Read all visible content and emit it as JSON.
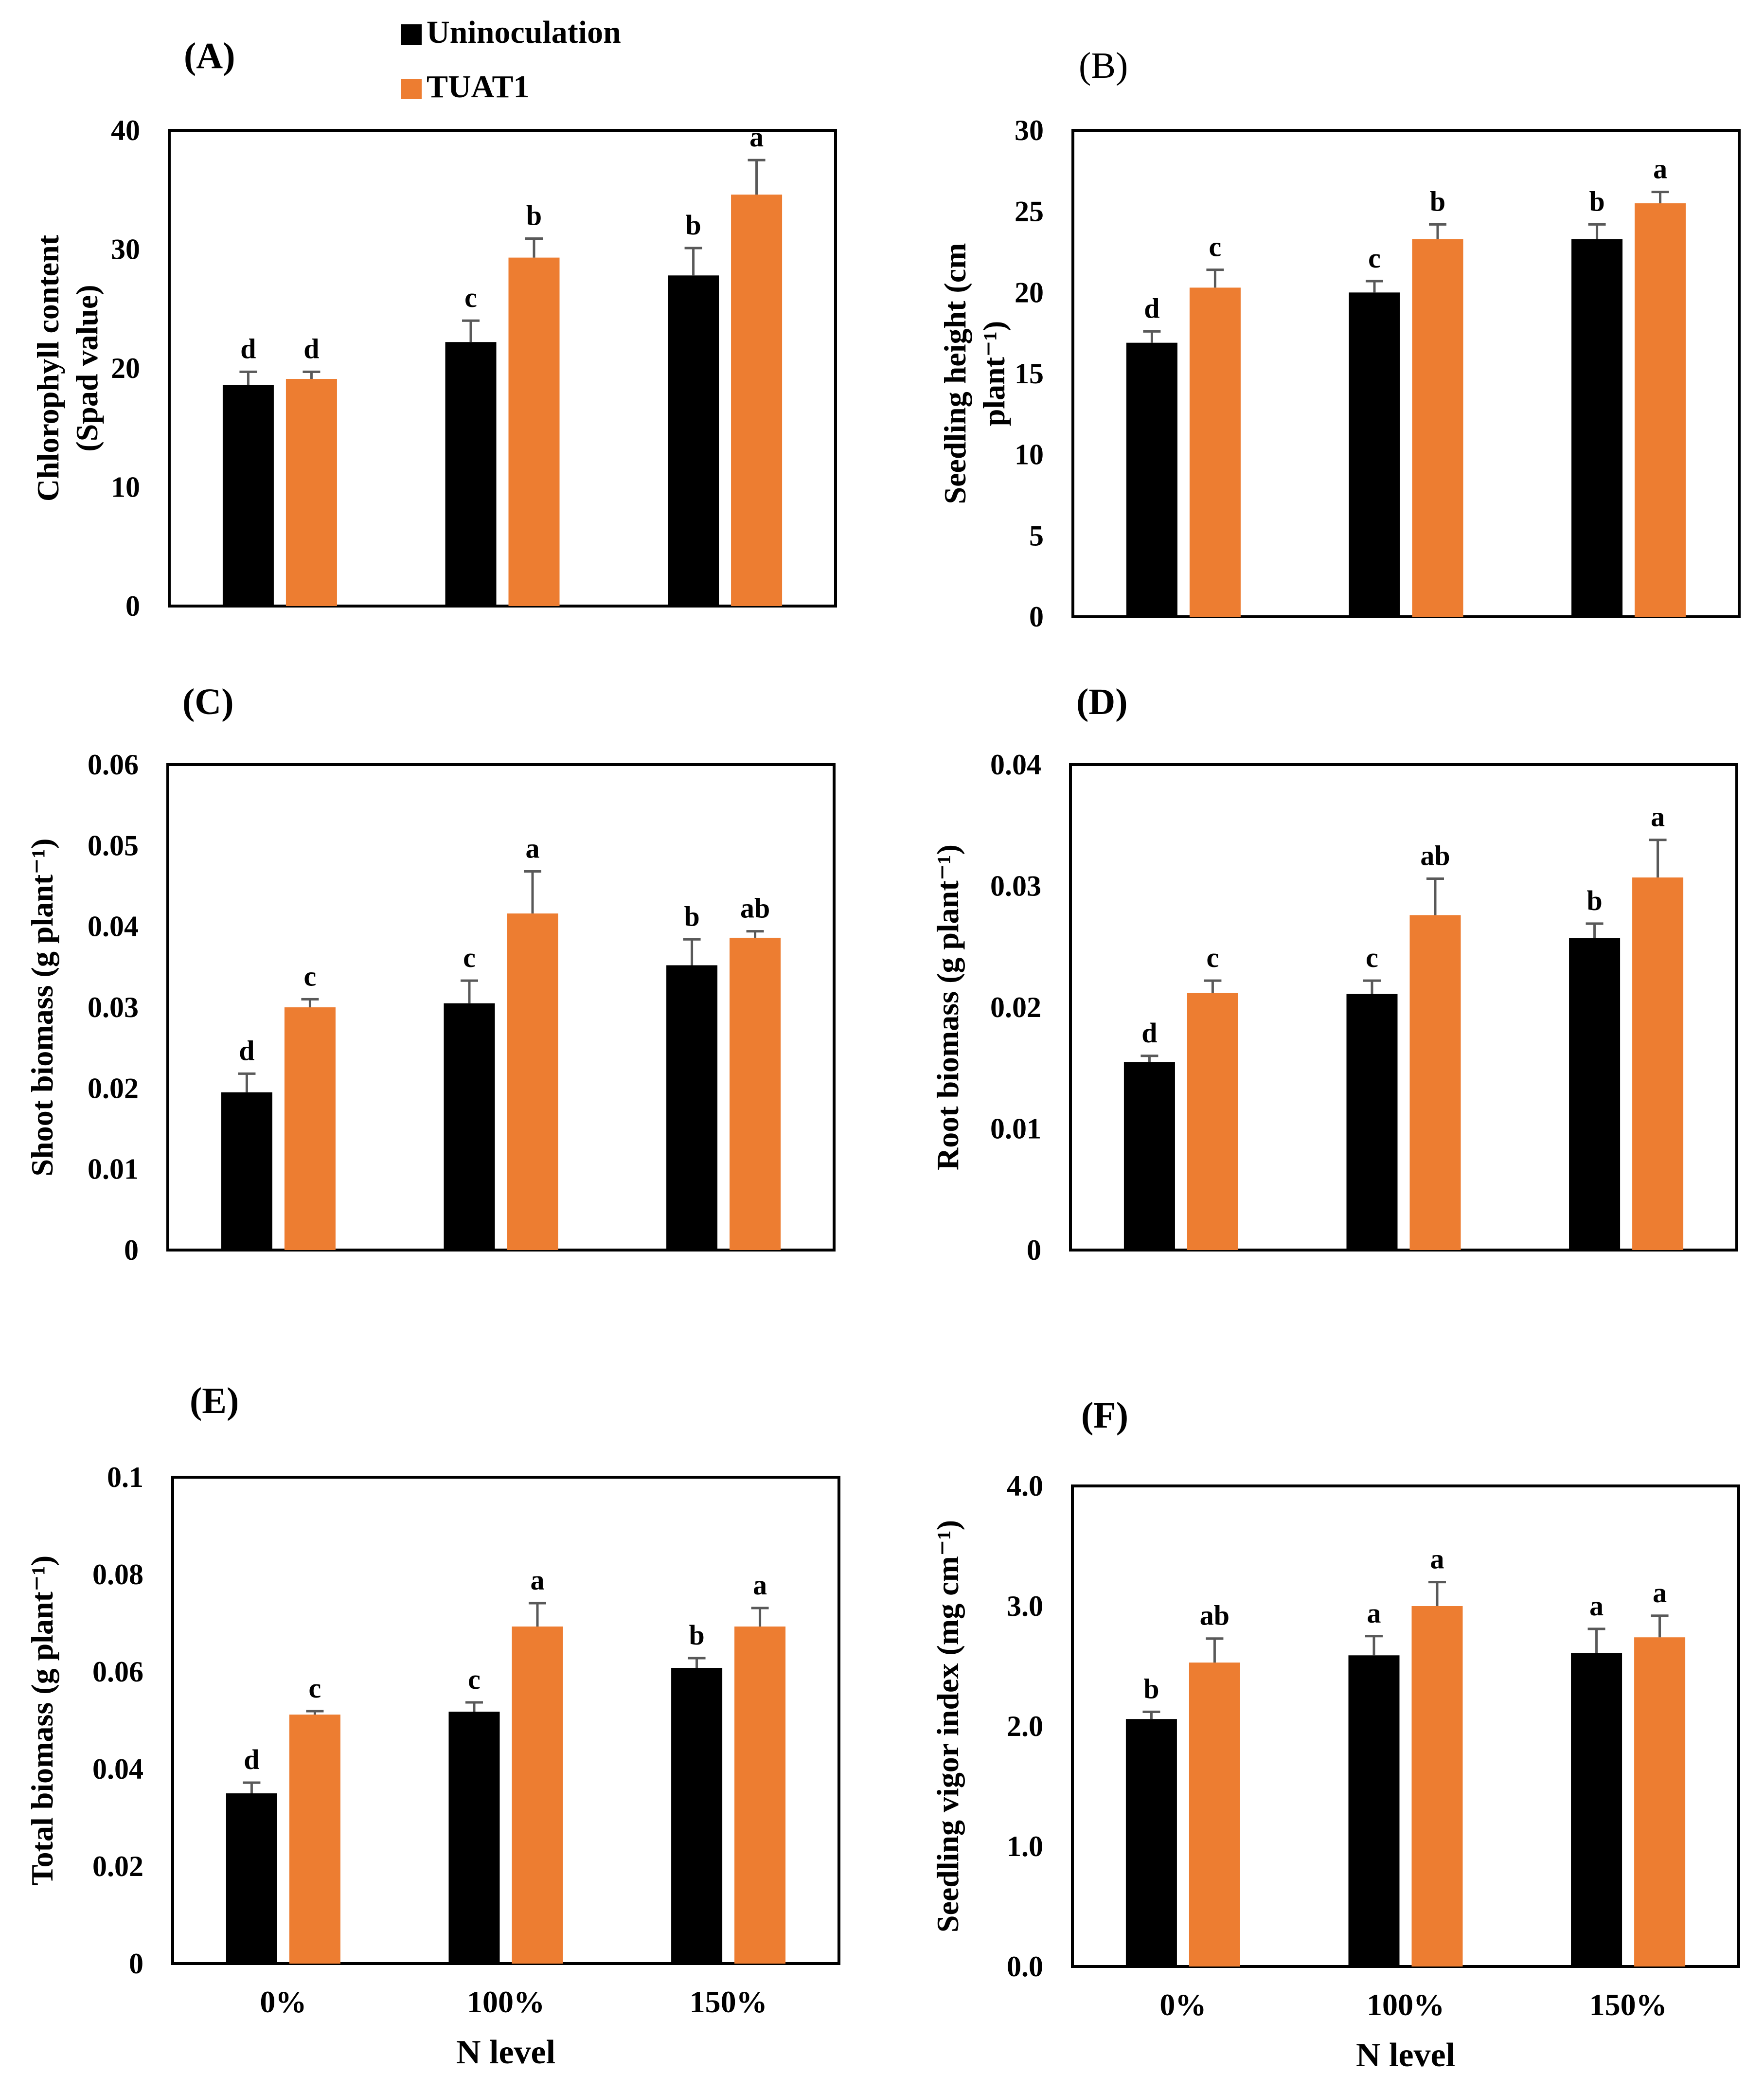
{
  "legend": {
    "items": [
      {
        "label": "Uninoculation",
        "color": "#000000"
      },
      {
        "label": "TUAT1",
        "color": "#ED7D31"
      }
    ]
  },
  "chart_data": [
    {
      "type": "bar",
      "panel": "(A)",
      "ylabel_lines": [
        "Chlorophyll content",
        "(Spad value)"
      ],
      "ylim": [
        0,
        40
      ],
      "yticks": [
        "0",
        "10",
        "20",
        "30",
        "40"
      ],
      "categories": [
        "0%",
        "100%",
        "150%"
      ],
      "series": [
        {
          "name": "Uninoculation",
          "values": [
            18.6,
            22.2,
            27.8
          ],
          "errors": [
            1.1,
            1.8,
            2.3
          ],
          "letters": [
            "d",
            "c",
            "b"
          ]
        },
        {
          "name": "TUAT1",
          "values": [
            19.1,
            29.3,
            34.6
          ],
          "errors": [
            0.6,
            1.6,
            2.9
          ],
          "letters": [
            "d",
            "b",
            "a"
          ]
        }
      ],
      "xlabel": ""
    },
    {
      "type": "bar",
      "panel": "(B)",
      "ylabel_lines": [
        "Seedling height (cm",
        "plant⁻¹)"
      ],
      "ylim": [
        0,
        30
      ],
      "yticks": [
        "0",
        "5",
        "10",
        "15",
        "20",
        "25",
        "30"
      ],
      "categories": [
        "0%",
        "100%",
        "150%"
      ],
      "series": [
        {
          "name": "Uninoculation",
          "values": [
            16.9,
            20.0,
            23.3
          ],
          "errors": [
            0.7,
            0.7,
            0.9
          ],
          "letters": [
            "d",
            "c",
            "b"
          ]
        },
        {
          "name": "TUAT1",
          "values": [
            20.3,
            23.3,
            25.5
          ],
          "errors": [
            1.1,
            0.9,
            0.7
          ],
          "letters": [
            "c",
            "b",
            "a"
          ]
        }
      ],
      "xlabel": ""
    },
    {
      "type": "bar",
      "panel": "(C)",
      "ylabel_lines": [
        "Shoot biomass (g plant⁻¹)"
      ],
      "ylim": [
        0,
        0.06
      ],
      "yticks": [
        "0",
        "0.01",
        "0.02",
        "0.03",
        "0.04",
        "0.05",
        "0.06"
      ],
      "categories": [
        "0%",
        "100%",
        "150%"
      ],
      "series": [
        {
          "name": "Uninoculation",
          "values": [
            0.0195,
            0.0305,
            0.0352
          ],
          "errors": [
            0.0023,
            0.0028,
            0.0032
          ],
          "letters": [
            "d",
            "c",
            "b"
          ]
        },
        {
          "name": "TUAT1",
          "values": [
            0.03,
            0.0416,
            0.0386
          ],
          "errors": [
            0.001,
            0.0052,
            0.0008
          ],
          "letters": [
            "c",
            "a",
            "ab"
          ]
        }
      ],
      "xlabel": ""
    },
    {
      "type": "bar",
      "panel": "(D)",
      "ylabel_lines": [
        "Root biomass (g plant⁻¹)"
      ],
      "ylim": [
        0,
        0.04
      ],
      "yticks": [
        "0",
        "0.01",
        "0.02",
        "0.03",
        "0.04"
      ],
      "categories": [
        "0%",
        "100%",
        "150%"
      ],
      "series": [
        {
          "name": "Uninoculation",
          "values": [
            0.0155,
            0.0211,
            0.0257
          ],
          "errors": [
            0.0005,
            0.0011,
            0.0012
          ],
          "letters": [
            "d",
            "c",
            "b"
          ]
        },
        {
          "name": "TUAT1",
          "values": [
            0.0212,
            0.0276,
            0.0307
          ],
          "errors": [
            0.001,
            0.003,
            0.0031
          ],
          "letters": [
            "c",
            "ab",
            "a"
          ]
        }
      ],
      "xlabel": ""
    },
    {
      "type": "bar",
      "panel": "(E)",
      "ylabel_lines": [
        "Total biomass (g plant⁻¹)"
      ],
      "ylim": [
        0,
        0.1
      ],
      "yticks": [
        "0",
        "0.02",
        "0.04",
        "0.06",
        "0.08",
        "0.1"
      ],
      "categories": [
        "0%",
        "100%",
        "150%"
      ],
      "series": [
        {
          "name": "Uninoculation",
          "values": [
            0.035,
            0.0518,
            0.0608
          ],
          "errors": [
            0.0022,
            0.0019,
            0.002
          ],
          "letters": [
            "d",
            "c",
            "b"
          ]
        },
        {
          "name": "TUAT1",
          "values": [
            0.0512,
            0.0693,
            0.0693
          ],
          "errors": [
            0.0007,
            0.0048,
            0.0038
          ],
          "letters": [
            "c",
            "a",
            "a"
          ]
        }
      ],
      "xlabel": "N level"
    },
    {
      "type": "bar",
      "panel": "(F)",
      "ylabel_lines": [
        "Seedling vigor index (mg cm⁻¹)"
      ],
      "ylim": [
        0,
        4.0
      ],
      "yticks": [
        "0.0",
        "1.0",
        "2.0",
        "3.0",
        "4.0"
      ],
      "categories": [
        "0%",
        "100%",
        "150%"
      ],
      "series": [
        {
          "name": "Uninoculation",
          "values": [
            2.06,
            2.59,
            2.61
          ],
          "errors": [
            0.06,
            0.16,
            0.2
          ],
          "letters": [
            "b",
            "a",
            "a"
          ]
        },
        {
          "name": "TUAT1",
          "values": [
            2.53,
            3.0,
            2.74
          ],
          "errors": [
            0.2,
            0.2,
            0.18
          ],
          "letters": [
            "ab",
            "a",
            "a"
          ]
        }
      ],
      "xlabel": "N level"
    }
  ]
}
